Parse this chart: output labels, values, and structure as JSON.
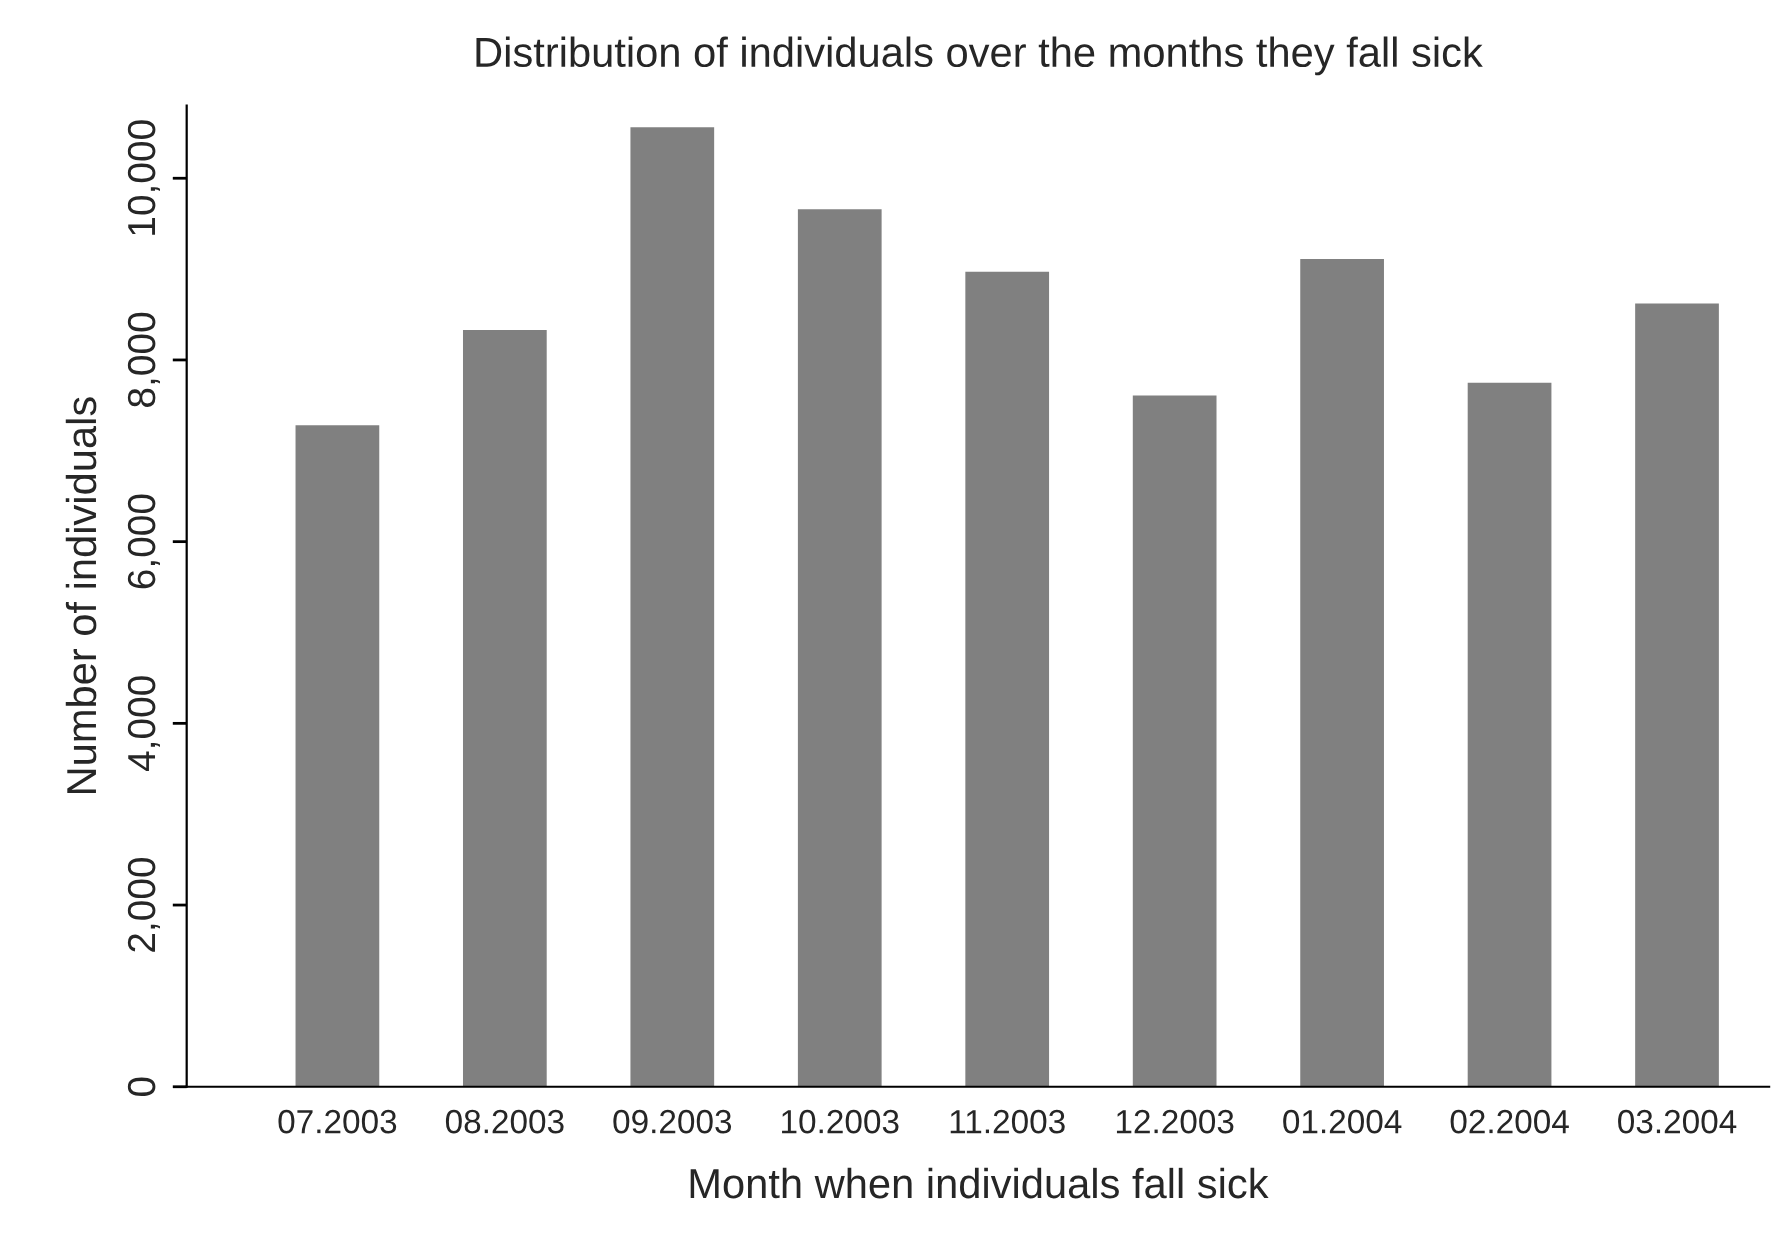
{
  "chart_data": {
    "type": "bar",
    "title": "Distribution of individuals over the months they fall sick",
    "xlabel": "Month when individuals fall sick",
    "ylabel": "Number of individuals",
    "categories": [
      "07.2003",
      "08.2003",
      "09.2003",
      "10.2003",
      "11.2003",
      "12.2003",
      "01.2004",
      "02.2004",
      "03.2004"
    ],
    "values": [
      7280,
      8330,
      10560,
      9660,
      8970,
      7610,
      9110,
      7750,
      8620
    ],
    "color": "#808080",
    "ylim": [
      0,
      10800
    ],
    "yticks": [
      0,
      {
        "value": 2000,
        "label": "2,000"
      },
      {
        "value": 4000,
        "label": "4,000"
      },
      {
        "value": 6000,
        "label": "6,000"
      },
      {
        "value": 8000,
        "label": "8,000"
      },
      {
        "value": 10000,
        "label": "10,000"
      }
    ],
    "grid": false,
    "legend": false
  }
}
